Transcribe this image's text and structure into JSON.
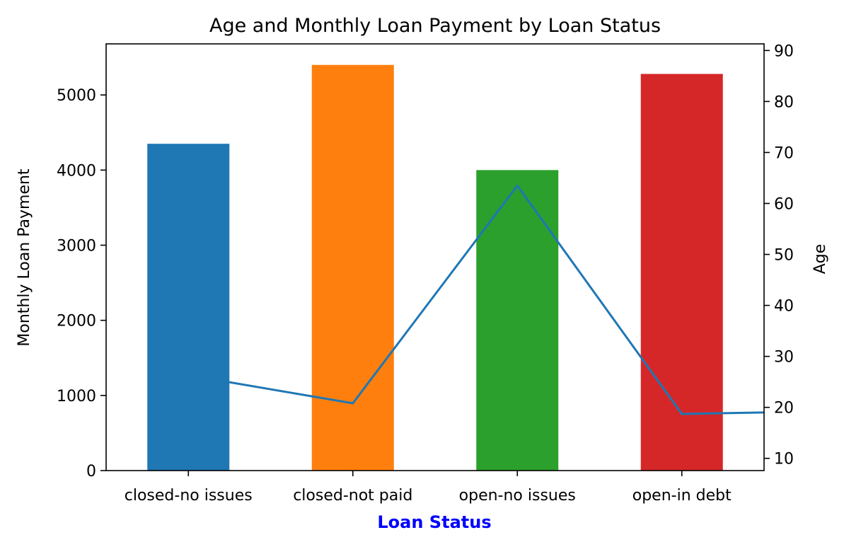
{
  "chart_data": {
    "type": "bar",
    "title": "Age and Monthly Loan Payment by Loan Status",
    "xlabel": "Loan Status",
    "xlabel_color": "#0000ff",
    "categories": [
      "closed-no issues",
      "closed-not paid",
      "open-no issues",
      "open-in debt"
    ],
    "bar_colors": [
      "#1f77b4",
      "#ff7f0e",
      "#2ca02c",
      "#d62728"
    ],
    "series": [
      {
        "axis": "left",
        "type": "bar",
        "values": [
          4350,
          5400,
          4000,
          5280
        ]
      },
      {
        "axis": "right",
        "type": "line",
        "color": "#1f77b4",
        "x": [
          0,
          1,
          2,
          3,
          3.5
        ],
        "values": [
          26.3,
          20.8,
          63.5,
          18.7,
          19.0
        ]
      }
    ],
    "left_axis": {
      "label": "Monthly Loan Payment",
      "ylim": [
        0,
        5680
      ],
      "ticks": [
        0,
        1000,
        2000,
        3000,
        4000,
        5000
      ]
    },
    "right_axis": {
      "label": "Age",
      "ylim": [
        7.6,
        91.3
      ],
      "ticks": [
        10,
        20,
        30,
        40,
        50,
        60,
        70,
        80,
        90
      ]
    },
    "xlim": [
      -0.5,
      3.5
    ],
    "grid": false,
    "legend": "none"
  }
}
